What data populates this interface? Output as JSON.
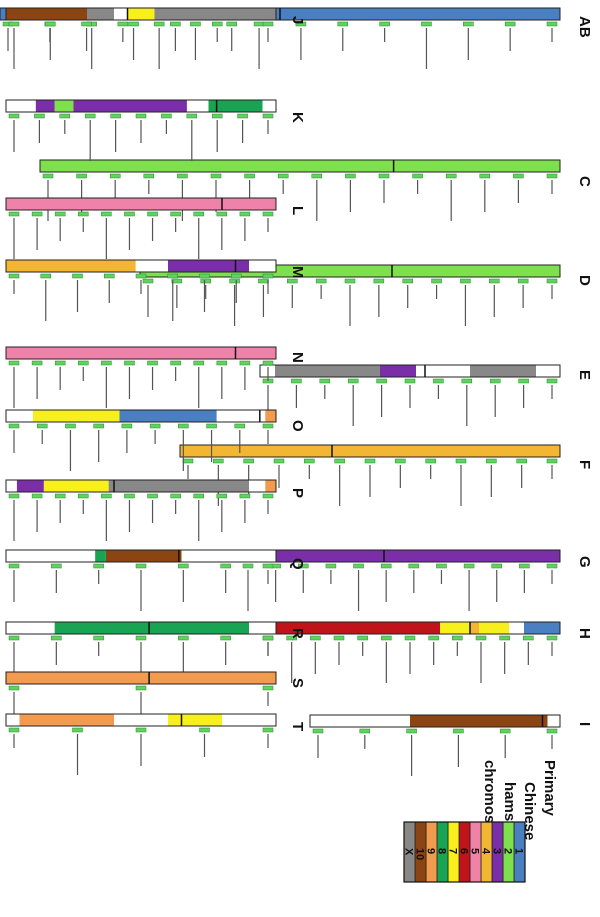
{
  "legend": {
    "title": [
      "Primary",
      "Chinese",
      "hamster",
      "chromosomes"
    ],
    "items": [
      {
        "label": "1",
        "color": "#4a7fc1"
      },
      {
        "label": "2",
        "color": "#7ee04c"
      },
      {
        "label": "3",
        "color": "#7a2fa8"
      },
      {
        "label": "4",
        "color": "#f2b632"
      },
      {
        "label": "5",
        "color": "#ef82a8"
      },
      {
        "label": "6",
        "color": "#c0141b"
      },
      {
        "label": "7",
        "color": "#f7f01c"
      },
      {
        "label": "8",
        "color": "#18a452"
      },
      {
        "label": "9",
        "color": "#f29a4e"
      },
      {
        "label": "10",
        "color": "#8b4513"
      },
      {
        "label": "X",
        "color": "#888888"
      }
    ]
  },
  "colors": {
    "c1": "#4a7fc1",
    "c2": "#7ee04c",
    "c3": "#7a2fa8",
    "c4": "#f2b632",
    "c5": "#ef82a8",
    "c6": "#c0141b",
    "c7": "#f7f01c",
    "c8": "#18a452",
    "c9": "#f29a4e",
    "c10": "#8b4513",
    "cX": "#888888",
    "white": "#ffffff",
    "probe": "#5fd35f"
  },
  "chromosomes": [
    {
      "label": "AB",
      "segments": [
        {
          "color": "c1",
          "frac": 1.0
        }
      ],
      "centromere": 0.5,
      "probes": 14
    },
    {
      "label": "C",
      "segments": [
        {
          "color": "c2",
          "frac": 1.0
        }
      ],
      "centromere": 0.32,
      "probes": 16
    },
    {
      "label": "D",
      "segments": [
        {
          "color": "c2",
          "frac": 1.0
        }
      ],
      "centromere": 0.4,
      "probes": 15
    },
    {
      "label": "E",
      "segments": [
        {
          "color": "white",
          "frac": 0.08
        },
        {
          "color": "cX",
          "frac": 0.22
        },
        {
          "color": "white",
          "frac": 0.18
        },
        {
          "color": "c3",
          "frac": 0.12
        },
        {
          "color": "cX",
          "frac": 0.35
        },
        {
          "color": "white",
          "frac": 0.05
        }
      ],
      "centromere": 0.45,
      "probes": 11
    },
    {
      "label": "F",
      "segments": [
        {
          "color": "c4",
          "frac": 1.0
        }
      ],
      "centromere": 0.6,
      "probes": 13
    },
    {
      "label": "G",
      "segments": [
        {
          "color": "c3",
          "frac": 1.0
        }
      ],
      "centromere": 0.55,
      "probes": 12
    },
    {
      "label": "H",
      "segments": [
        {
          "color": "c1",
          "frac": 0.12
        },
        {
          "color": "white",
          "frac": 0.05
        },
        {
          "color": "c7",
          "frac": 0.1
        },
        {
          "color": "c4",
          "frac": 0.03
        },
        {
          "color": "c7",
          "frac": 0.1
        },
        {
          "color": "c6",
          "frac": 0.6
        }
      ],
      "centromere": 0.3,
      "probes": 13
    },
    {
      "label": "I",
      "segments": [
        {
          "color": "white",
          "frac": 0.05
        },
        {
          "color": "c10",
          "frac": 0.55
        },
        {
          "color": "white",
          "frac": 0.4
        }
      ],
      "centromere": 0.07,
      "probes": 6
    },
    {
      "label": "J",
      "segments": [
        {
          "color": "cX",
          "frac": 0.45
        },
        {
          "color": "c7",
          "frac": 0.1
        },
        {
          "color": "white",
          "frac": 0.05
        },
        {
          "color": "cX",
          "frac": 0.1
        },
        {
          "color": "c10",
          "frac": 0.3
        }
      ],
      "centromere": 0.55,
      "probes": 8
    },
    {
      "label": "K",
      "segments": [
        {
          "color": "white",
          "frac": 0.05
        },
        {
          "color": "c8",
          "frac": 0.2
        },
        {
          "color": "white",
          "frac": 0.08
        },
        {
          "color": "c3",
          "frac": 0.42
        },
        {
          "color": "c2",
          "frac": 0.07
        },
        {
          "color": "c3",
          "frac": 0.07
        },
        {
          "color": "white",
          "frac": 0.11
        }
      ],
      "centromere": 0.22,
      "probes": 11
    },
    {
      "label": "L",
      "segments": [
        {
          "color": "c5",
          "frac": 1.0
        }
      ],
      "centromere": 0.2,
      "probes": 12
    },
    {
      "label": "M",
      "segments": [
        {
          "color": "white",
          "frac": 0.1
        },
        {
          "color": "c3",
          "frac": 0.3
        },
        {
          "color": "white",
          "frac": 0.12
        },
        {
          "color": "c4",
          "frac": 0.48
        }
      ],
      "centromere": 0.15,
      "probes": 9
    },
    {
      "label": "N",
      "segments": [
        {
          "color": "c5",
          "frac": 1.0
        }
      ],
      "centromere": 0.15,
      "probes": 12
    },
    {
      "label": "O",
      "segments": [
        {
          "color": "c9",
          "frac": 0.04
        },
        {
          "color": "white",
          "frac": 0.18
        },
        {
          "color": "c1",
          "frac": 0.36
        },
        {
          "color": "c7",
          "frac": 0.32
        },
        {
          "color": "white",
          "frac": 0.1
        }
      ],
      "centromere": 0.06,
      "probes": 10
    },
    {
      "label": "P",
      "segments": [
        {
          "color": "c9",
          "frac": 0.04
        },
        {
          "color": "white",
          "frac": 0.06
        },
        {
          "color": "cX",
          "frac": 0.52
        },
        {
          "color": "c7",
          "frac": 0.24
        },
        {
          "color": "c3",
          "frac": 0.1
        },
        {
          "color": "white",
          "frac": 0.04
        }
      ],
      "centromere": 0.6,
      "probes": 12
    },
    {
      "label": "Q",
      "segments": [
        {
          "color": "white",
          "frac": 0.35
        },
        {
          "color": "c10",
          "frac": 0.28
        },
        {
          "color": "c8",
          "frac": 0.04
        },
        {
          "color": "white",
          "frac": 0.33
        }
      ],
      "centromere": 0.36,
      "probes": 7
    },
    {
      "label": "R",
      "segments": [
        {
          "color": "white",
          "frac": 0.1
        },
        {
          "color": "c8",
          "frac": 0.72
        },
        {
          "color": "white",
          "frac": 0.18
        }
      ],
      "centromere": 0.47,
      "probes": 7
    },
    {
      "label": "S",
      "segments": [
        {
          "color": "c9",
          "frac": 1.0
        }
      ],
      "centromere": 0.47,
      "probes": 3
    },
    {
      "label": "T",
      "segments": [
        {
          "color": "white",
          "frac": 0.2
        },
        {
          "color": "c7",
          "frac": 0.2
        },
        {
          "color": "white",
          "frac": 0.2
        },
        {
          "color": "c9",
          "frac": 0.35
        },
        {
          "color": "white",
          "frac": 0.05
        }
      ],
      "centromere": 0.35,
      "probes": 5
    }
  ]
}
